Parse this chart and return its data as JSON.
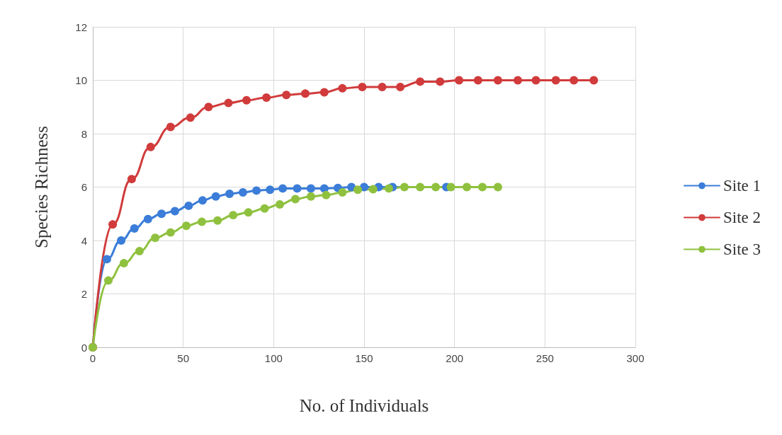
{
  "chart_data": {
    "type": "line",
    "xlabel": "No. of Individuals",
    "ylabel": "Species Richness",
    "xlim": [
      0,
      300
    ],
    "xticks": [
      0,
      50,
      100,
      150,
      200,
      250,
      300
    ],
    "ylim": [
      0,
      12
    ],
    "yticks": [
      0,
      2,
      4,
      6,
      8,
      10,
      12
    ],
    "grid": true,
    "legend": "right",
    "marker": "circle",
    "line_style": "solid",
    "series": [
      {
        "name": "Site 1",
        "color": "#3b7dd8",
        "x": [
          0,
          7.8,
          15.7,
          23,
          30.5,
          38,
          45.4,
          53,
          60.7,
          68,
          75.6,
          83,
          90.5,
          98,
          105,
          113,
          120.6,
          128,
          135.5,
          143,
          150,
          158,
          165.7,
          173,
          180.6,
          188,
          195.5
        ],
        "values": [
          0,
          3.3,
          4.0,
          4.45,
          4.8,
          5.0,
          5.1,
          5.3,
          5.5,
          5.65,
          5.75,
          5.8,
          5.87,
          5.9,
          5.95,
          5.95,
          5.95,
          5.95,
          5.97,
          6.0,
          6.0,
          6.0,
          6.0,
          null,
          null,
          null,
          6.0
        ]
      },
      {
        "name": "Site 2",
        "color": "#d13b3b",
        "x": [
          0,
          11,
          21.5,
          32,
          43,
          54,
          64,
          75,
          85,
          96,
          107,
          117.5,
          128,
          138,
          149,
          160,
          170,
          181,
          192,
          202.5,
          213,
          224,
          235,
          245,
          256,
          266,
          277
        ],
        "values": [
          0,
          4.6,
          6.3,
          7.5,
          8.25,
          8.6,
          9.0,
          9.15,
          9.25,
          9.35,
          9.45,
          9.5,
          9.55,
          9.7,
          9.75,
          9.75,
          9.75,
          9.95,
          9.95,
          10,
          10,
          10,
          10,
          10,
          10,
          10,
          10
        ]
      },
      {
        "name": "Site 3",
        "color": "#8fc13f",
        "x": [
          0,
          8.6,
          17.2,
          25.8,
          34.5,
          43,
          51.7,
          60.3,
          69,
          77.6,
          86,
          95,
          103.4,
          112,
          120.6,
          129,
          138,
          146.5,
          155,
          163.7,
          172.3,
          181,
          189.6,
          198,
          206.8,
          215.4,
          224
        ],
        "values": [
          0,
          2.5,
          3.15,
          3.6,
          4.1,
          4.3,
          4.55,
          4.7,
          4.75,
          4.95,
          5.05,
          5.2,
          5.35,
          5.55,
          5.65,
          5.7,
          5.8,
          5.9,
          5.92,
          5.95,
          6.0,
          6.0,
          6.0,
          6.0,
          6.0,
          6.0,
          6.0
        ]
      }
    ]
  }
}
